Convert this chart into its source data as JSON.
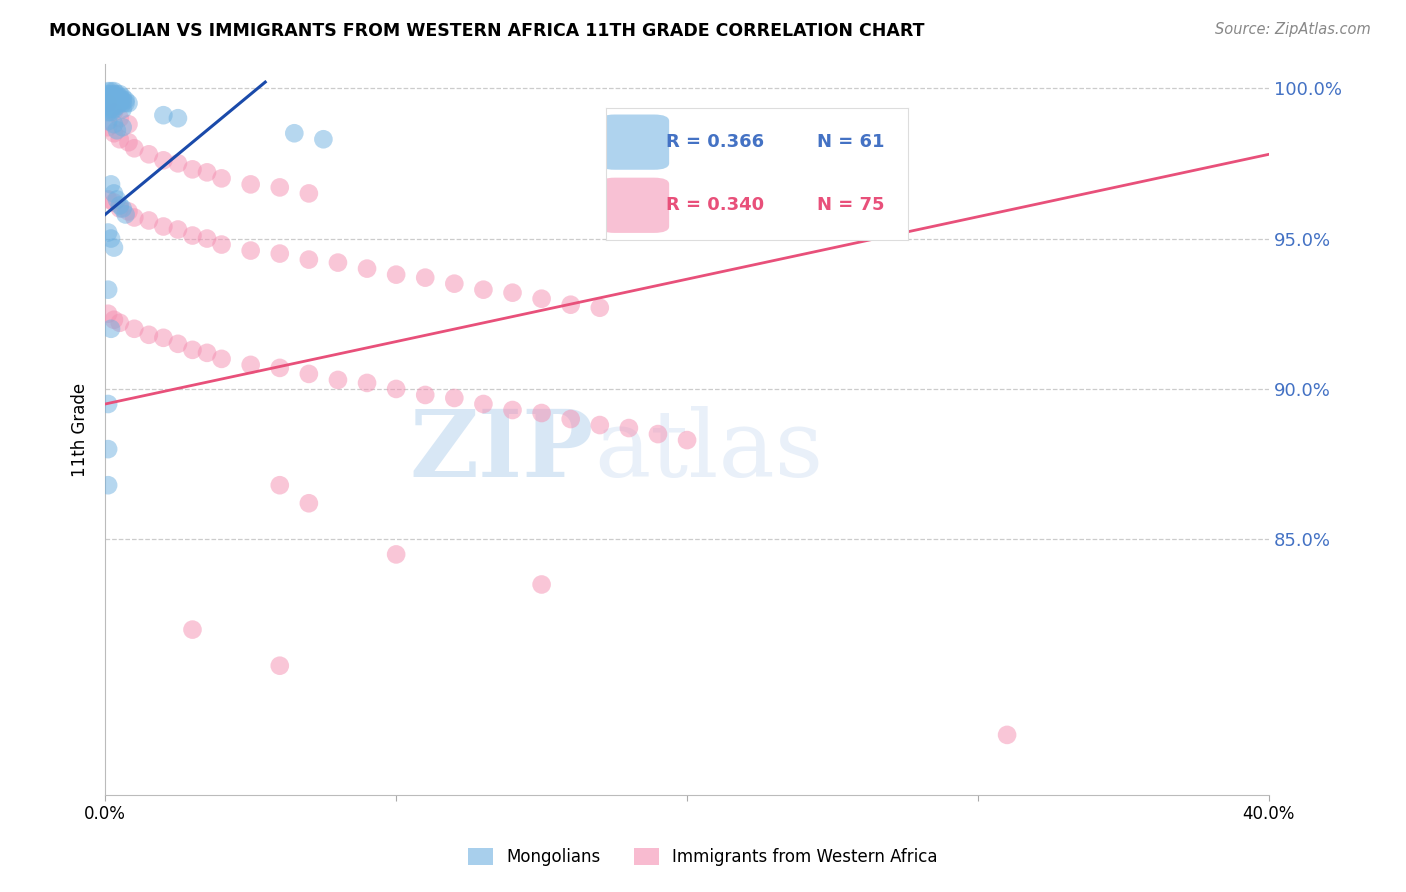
{
  "title": "MONGOLIAN VS IMMIGRANTS FROM WESTERN AFRICA 11TH GRADE CORRELATION CHART",
  "source": "Source: ZipAtlas.com",
  "ylabel": "11th Grade",
  "ytick_labels": [
    "85.0%",
    "90.0%",
    "95.0%",
    "100.0%"
  ],
  "ytick_values": [
    0.85,
    0.9,
    0.95,
    1.0
  ],
  "legend_blue_r": "R = 0.366",
  "legend_blue_n": "N = 61",
  "legend_pink_r": "R = 0.340",
  "legend_pink_n": "N = 75",
  "blue_color": "#6eb0e0",
  "pink_color": "#f48fb1",
  "blue_line_color": "#1a4aaa",
  "pink_line_color": "#e8507a",
  "blue_line": [
    [
      0.0,
      0.958
    ],
    [
      0.055,
      1.002
    ]
  ],
  "pink_line": [
    [
      0.0,
      0.895
    ],
    [
      0.4,
      0.978
    ]
  ],
  "watermark_zip": "ZIP",
  "watermark_atlas": "atlas",
  "xmin": 0.0,
  "xmax": 0.4,
  "ymin": 0.765,
  "ymax": 1.008,
  "blue_pts": [
    [
      0.001,
      0.999
    ],
    [
      0.002,
      0.999
    ],
    [
      0.003,
      0.999
    ],
    [
      0.001,
      0.998
    ],
    [
      0.002,
      0.998
    ],
    [
      0.003,
      0.998
    ],
    [
      0.004,
      0.998
    ],
    [
      0.005,
      0.998
    ],
    [
      0.001,
      0.997
    ],
    [
      0.002,
      0.997
    ],
    [
      0.003,
      0.997
    ],
    [
      0.004,
      0.997
    ],
    [
      0.005,
      0.997
    ],
    [
      0.006,
      0.997
    ],
    [
      0.001,
      0.996
    ],
    [
      0.002,
      0.996
    ],
    [
      0.003,
      0.996
    ],
    [
      0.004,
      0.996
    ],
    [
      0.005,
      0.996
    ],
    [
      0.006,
      0.996
    ],
    [
      0.007,
      0.996
    ],
    [
      0.001,
      0.995
    ],
    [
      0.002,
      0.995
    ],
    [
      0.003,
      0.995
    ],
    [
      0.004,
      0.995
    ],
    [
      0.005,
      0.995
    ],
    [
      0.006,
      0.995
    ],
    [
      0.007,
      0.995
    ],
    [
      0.008,
      0.995
    ],
    [
      0.001,
      0.994
    ],
    [
      0.002,
      0.994
    ],
    [
      0.003,
      0.994
    ],
    [
      0.004,
      0.994
    ],
    [
      0.001,
      0.993
    ],
    [
      0.002,
      0.993
    ],
    [
      0.003,
      0.993
    ],
    [
      0.006,
      0.993
    ],
    [
      0.001,
      0.992
    ],
    [
      0.002,
      0.992
    ],
    [
      0.02,
      0.991
    ],
    [
      0.025,
      0.99
    ],
    [
      0.001,
      0.989
    ],
    [
      0.003,
      0.988
    ],
    [
      0.006,
      0.987
    ],
    [
      0.004,
      0.986
    ],
    [
      0.065,
      0.985
    ],
    [
      0.075,
      0.983
    ],
    [
      0.002,
      0.968
    ],
    [
      0.003,
      0.965
    ],
    [
      0.004,
      0.963
    ],
    [
      0.005,
      0.961
    ],
    [
      0.006,
      0.96
    ],
    [
      0.007,
      0.958
    ],
    [
      0.001,
      0.952
    ],
    [
      0.002,
      0.95
    ],
    [
      0.003,
      0.947
    ],
    [
      0.001,
      0.933
    ],
    [
      0.002,
      0.92
    ],
    [
      0.001,
      0.895
    ],
    [
      0.001,
      0.88
    ],
    [
      0.001,
      0.868
    ]
  ],
  "pink_pts": [
    [
      0.001,
      0.995
    ],
    [
      0.003,
      0.992
    ],
    [
      0.005,
      0.99
    ],
    [
      0.008,
      0.988
    ],
    [
      0.001,
      0.987
    ],
    [
      0.003,
      0.985
    ],
    [
      0.005,
      0.983
    ],
    [
      0.008,
      0.982
    ],
    [
      0.01,
      0.98
    ],
    [
      0.015,
      0.978
    ],
    [
      0.02,
      0.976
    ],
    [
      0.025,
      0.975
    ],
    [
      0.03,
      0.973
    ],
    [
      0.035,
      0.972
    ],
    [
      0.04,
      0.97
    ],
    [
      0.05,
      0.968
    ],
    [
      0.06,
      0.967
    ],
    [
      0.07,
      0.965
    ],
    [
      0.001,
      0.963
    ],
    [
      0.003,
      0.962
    ],
    [
      0.005,
      0.96
    ],
    [
      0.008,
      0.959
    ],
    [
      0.01,
      0.957
    ],
    [
      0.015,
      0.956
    ],
    [
      0.02,
      0.954
    ],
    [
      0.025,
      0.953
    ],
    [
      0.03,
      0.951
    ],
    [
      0.035,
      0.95
    ],
    [
      0.04,
      0.948
    ],
    [
      0.05,
      0.946
    ],
    [
      0.06,
      0.945
    ],
    [
      0.07,
      0.943
    ],
    [
      0.08,
      0.942
    ],
    [
      0.09,
      0.94
    ],
    [
      0.1,
      0.938
    ],
    [
      0.11,
      0.937
    ],
    [
      0.12,
      0.935
    ],
    [
      0.13,
      0.933
    ],
    [
      0.14,
      0.932
    ],
    [
      0.15,
      0.93
    ],
    [
      0.16,
      0.928
    ],
    [
      0.17,
      0.927
    ],
    [
      0.001,
      0.925
    ],
    [
      0.003,
      0.923
    ],
    [
      0.005,
      0.922
    ],
    [
      0.01,
      0.92
    ],
    [
      0.015,
      0.918
    ],
    [
      0.02,
      0.917
    ],
    [
      0.025,
      0.915
    ],
    [
      0.03,
      0.913
    ],
    [
      0.035,
      0.912
    ],
    [
      0.04,
      0.91
    ],
    [
      0.05,
      0.908
    ],
    [
      0.06,
      0.907
    ],
    [
      0.07,
      0.905
    ],
    [
      0.08,
      0.903
    ],
    [
      0.09,
      0.902
    ],
    [
      0.1,
      0.9
    ],
    [
      0.11,
      0.898
    ],
    [
      0.12,
      0.897
    ],
    [
      0.13,
      0.895
    ],
    [
      0.14,
      0.893
    ],
    [
      0.15,
      0.892
    ],
    [
      0.16,
      0.89
    ],
    [
      0.17,
      0.888
    ],
    [
      0.18,
      0.887
    ],
    [
      0.19,
      0.885
    ],
    [
      0.2,
      0.883
    ],
    [
      0.06,
      0.868
    ],
    [
      0.07,
      0.862
    ],
    [
      0.1,
      0.845
    ],
    [
      0.15,
      0.835
    ],
    [
      0.03,
      0.82
    ],
    [
      0.06,
      0.808
    ],
    [
      0.31,
      0.785
    ]
  ]
}
